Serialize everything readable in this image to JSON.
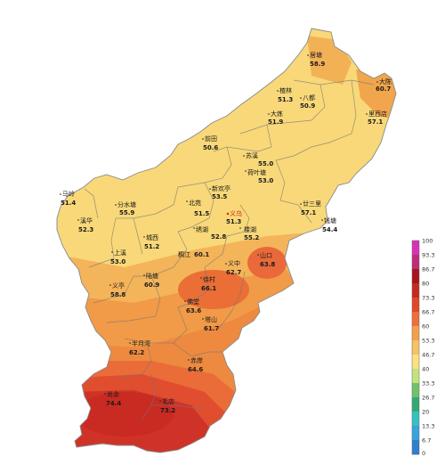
{
  "map": {
    "stations": [
      {
        "name": "居塘",
        "value": "58.9"
      },
      {
        "name": "大陈",
        "value": "60.7"
      },
      {
        "name": "楂林",
        "value": "51.3"
      },
      {
        "name": "八都",
        "value": "50.9"
      },
      {
        "name": "大炼",
        "value": "51.9"
      },
      {
        "name": "里西店",
        "value": "57.1"
      },
      {
        "name": "前田",
        "value": "50.6"
      },
      {
        "name": "苏溪",
        "value": "55.0"
      },
      {
        "name": "荷叶塘",
        "value": "53.0"
      },
      {
        "name": "新欢亭",
        "value": "53.5"
      },
      {
        "name": "北苑",
        "value": "51.5"
      },
      {
        "name": "义乌",
        "value": "51.3"
      },
      {
        "name": "马岭",
        "value": "51.4"
      },
      {
        "name": "分水塘",
        "value": "55.9"
      },
      {
        "name": "廿三里",
        "value": "57.1"
      },
      {
        "name": "溪华",
        "value": "52.3"
      },
      {
        "name": "绣湖",
        "value": "52.8"
      },
      {
        "name": "楼湖",
        "value": "55.2"
      },
      {
        "name": "钱塘",
        "value": "54.4"
      },
      {
        "name": "城西",
        "value": "51.2"
      },
      {
        "name": "上溪",
        "value": "53.0"
      },
      {
        "name": "稠江",
        "value": "60.1"
      },
      {
        "name": "义中",
        "value": "62.7"
      },
      {
        "name": "山口",
        "value": "63.8"
      },
      {
        "name": "徐村",
        "value": "66.1"
      },
      {
        "name": "义亭",
        "value": "58.8"
      },
      {
        "name": "陆塘",
        "value": "60.9"
      },
      {
        "name": "佛堂",
        "value": "63.6"
      },
      {
        "name": "塔山",
        "value": "61.7"
      },
      {
        "name": "半月湾",
        "value": "62.2"
      },
      {
        "name": "赤岸",
        "value": "64.6"
      },
      {
        "name": "尚余",
        "value": "74.4"
      },
      {
        "name": "毛店",
        "value": "73.2"
      }
    ]
  },
  "legend": {
    "ticks": [
      "100",
      "93.3",
      "86.7",
      "80",
      "73.3",
      "66.7",
      "60",
      "53.3",
      "46.7",
      "40",
      "33.3",
      "26.7",
      "20",
      "13.3",
      "6.7",
      "0"
    ],
    "colors": [
      "#d633b8",
      "#c02b7a",
      "#a8141c",
      "#c62a1e",
      "#e04728",
      "#ef6f3c",
      "#f39f4f",
      "#f6c262",
      "#fae283",
      "#c2e37c",
      "#6ec26b",
      "#33a873",
      "#35c0c4",
      "#3aa2dd",
      "#2f7fcf",
      "#2457b8"
    ]
  },
  "colors": {
    "low": "#f8d878",
    "mid": "#f2a650",
    "high": "#e85c36",
    "peak": "#cc2a24",
    "border": "#777777"
  }
}
